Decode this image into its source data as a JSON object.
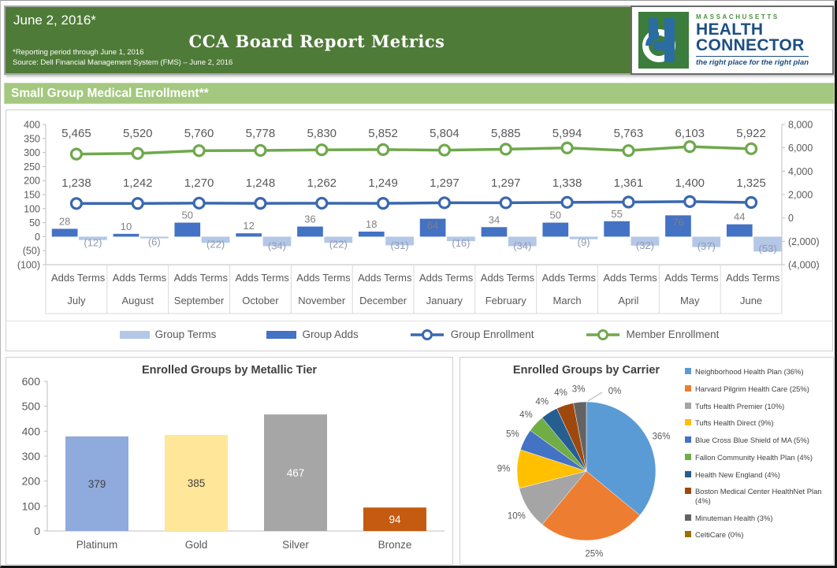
{
  "header": {
    "date_label": "June 2, 2016*",
    "title": "CCA Board Report Metrics",
    "footnote1": "*Reporting period through June 1, 2016",
    "footnote2": "Source: Dell Financial Management System (FMS) – June 2, 2016",
    "logo": {
      "region": "MASSACHUSETTS",
      "name_line1": "HEALTH",
      "name_line2": "CONNECTOR",
      "tagline": "the right place for the right plan",
      "green": "#4a9142",
      "blue": "#1c4f82",
      "mark_green": "#3c7c3c",
      "mark_blue": "#2b6ca3"
    },
    "bg_color": "#4f7b38"
  },
  "section": {
    "title": "Small Group Medical Enrollment**",
    "bg_color": "#a4c87f"
  },
  "chart_data": [
    {
      "name": "small-group-enrollment-combo",
      "type": "bar",
      "subtype": "combo bar+line, dual axis",
      "categories": [
        "July",
        "August",
        "September",
        "October",
        "November",
        "December",
        "January",
        "February",
        "March",
        "April",
        "May",
        "June"
      ],
      "category_sublabels": [
        "Adds",
        "Terms"
      ],
      "series": [
        {
          "name": "Group Terms",
          "type": "bar",
          "axis": "left",
          "color": "#b4c7e7",
          "values": [
            -12,
            -6,
            -22,
            -34,
            -22,
            -31,
            -16,
            -34,
            -9,
            -32,
            -37,
            -53
          ]
        },
        {
          "name": "Group Adds",
          "type": "bar",
          "axis": "left",
          "color": "#4472c4",
          "values": [
            28,
            10,
            50,
            12,
            36,
            18,
            64,
            34,
            50,
            55,
            76,
            44
          ]
        },
        {
          "name": "Group Enrollment",
          "type": "line",
          "axis": "right",
          "color": "#3a68b0",
          "values": [
            1238,
            1242,
            1270,
            1248,
            1262,
            1249,
            1297,
            1297,
            1338,
            1361,
            1400,
            1325
          ]
        },
        {
          "name": "Member Enrollment",
          "type": "line",
          "axis": "right",
          "color": "#6fa84c",
          "values": [
            5465,
            5520,
            5760,
            5778,
            5830,
            5852,
            5804,
            5885,
            5994,
            5763,
            6103,
            5922
          ]
        }
      ],
      "left_axis": {
        "min": -100,
        "max": 400,
        "step": 50,
        "ticks": [
          "400",
          "350",
          "300",
          "250",
          "200",
          "150",
          "100",
          "50",
          "0",
          "(50)",
          "(100)"
        ]
      },
      "right_axis": {
        "min": -4000,
        "max": 8000,
        "step": 2000,
        "ticks": [
          "8,000",
          "6,000",
          "4,000",
          "2,000",
          "0",
          "(2,000)",
          "(4,000)"
        ]
      },
      "grid": false,
      "legend_position": "bottom"
    },
    {
      "name": "enrolled-groups-by-metallic-tier",
      "type": "bar",
      "title": "Enrolled Groups by Metallic Tier",
      "categories": [
        "Platinum",
        "Gold",
        "Silver",
        "Bronze"
      ],
      "values": [
        379,
        385,
        467,
        94
      ],
      "colors": [
        "#8faadc",
        "#ffe699",
        "#a6a6a6",
        "#c55a11"
      ],
      "label_colors": [
        "#404040",
        "#404040",
        "#ffffff",
        "#ffffff"
      ],
      "ylim": [
        0,
        600
      ],
      "ystep": 100,
      "grid": false
    },
    {
      "name": "enrolled-groups-by-carrier",
      "type": "pie",
      "title": "Enrolled Groups by Carrier",
      "legend_position": "right",
      "slices": [
        {
          "label": "Neighborhood Health Plan (36%)",
          "pct_label": "36%",
          "value": 36,
          "color": "#5b9bd5"
        },
        {
          "label": "Harvard Pilgrim Health Care (25%)",
          "pct_label": "25%",
          "value": 25,
          "color": "#ed7d31"
        },
        {
          "label": "Tufts Health Premier (10%)",
          "pct_label": "10%",
          "value": 10,
          "color": "#a5a5a5"
        },
        {
          "label": "Tufts Health Direct (9%)",
          "pct_label": "9%",
          "value": 9,
          "color": "#ffc000"
        },
        {
          "label": "Blue Cross Blue Shield of MA (5%)",
          "pct_label": "5%",
          "value": 5,
          "color": "#4472c4"
        },
        {
          "label": "Fallon Community Health Plan (4%)",
          "pct_label": "4%",
          "value": 4,
          "color": "#70ad47"
        },
        {
          "label": "Health New England (4%)",
          "pct_label": "4%",
          "value": 4,
          "color": "#255e91"
        },
        {
          "label": "Boston Medical Center HealthNet Plan (4%)",
          "pct_label": "4%",
          "value": 4,
          "color": "#9e480e"
        },
        {
          "label": "Minuteman Health (3%)",
          "pct_label": "3%",
          "value": 3,
          "color": "#636363"
        },
        {
          "label": "CeltiCare (0%)",
          "pct_label": "0%",
          "value": 0,
          "color": "#997300"
        }
      ]
    }
  ]
}
